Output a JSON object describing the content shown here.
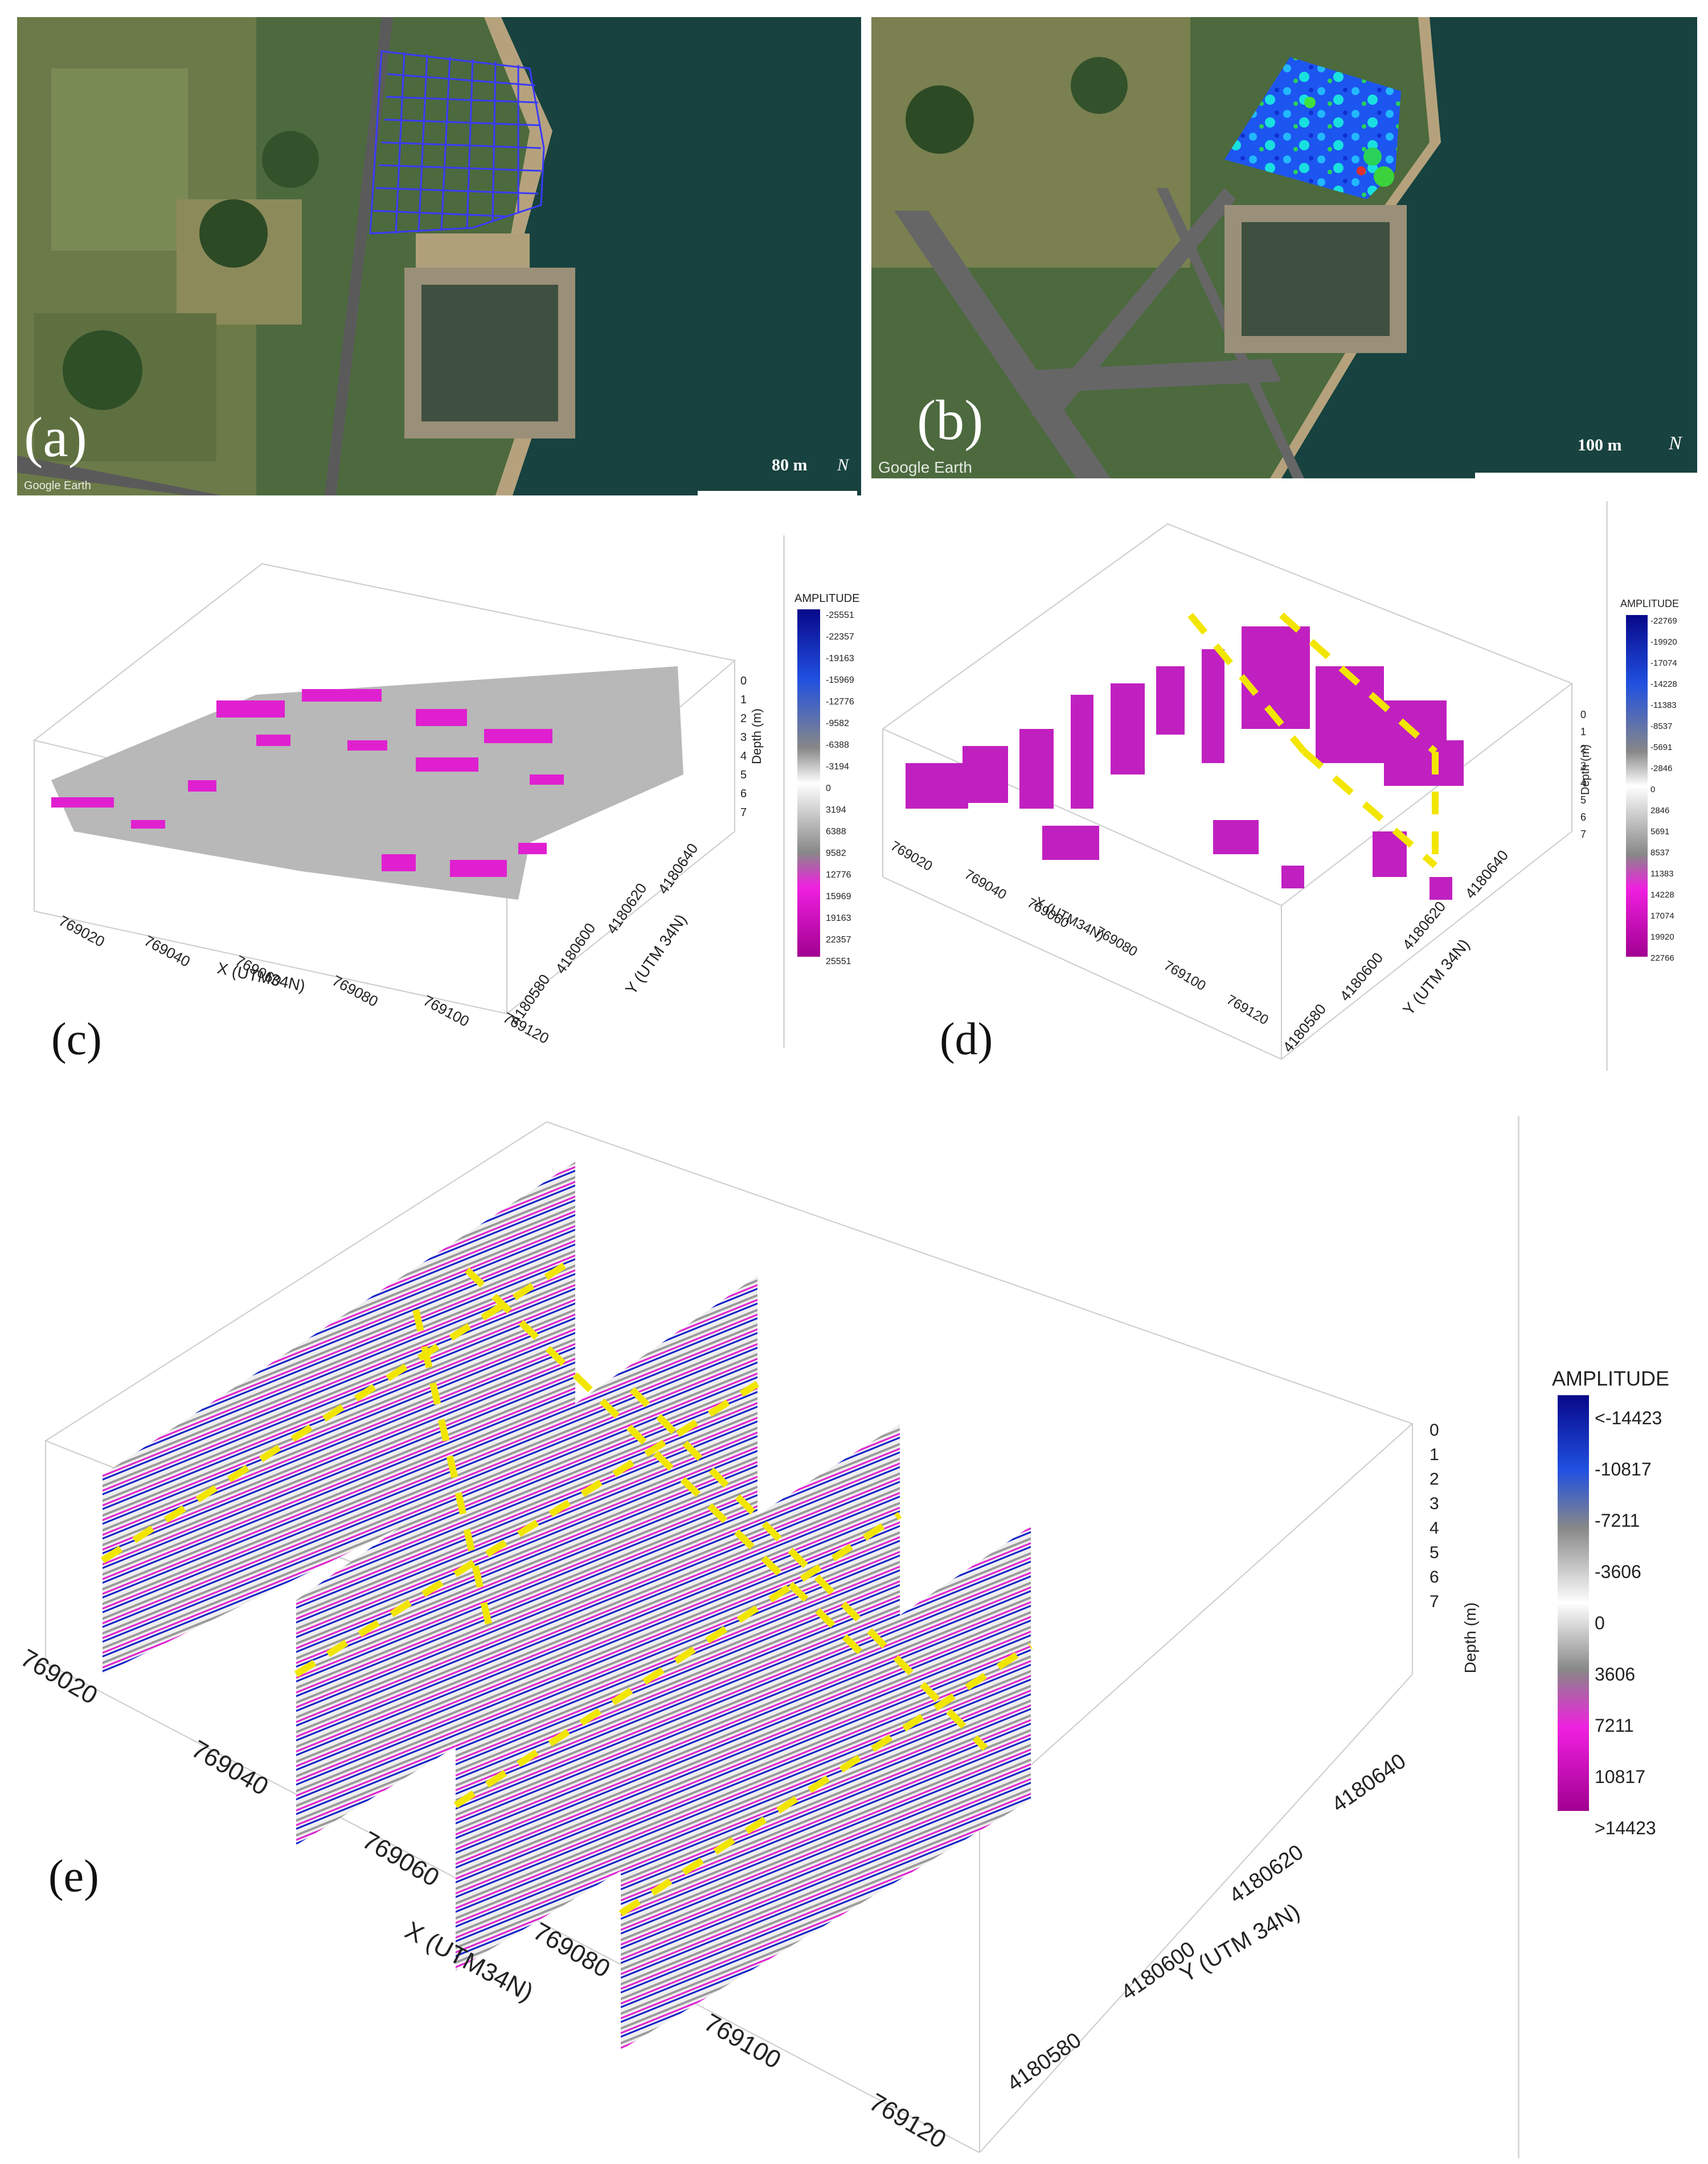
{
  "panels": {
    "a": {
      "letter": "(a)",
      "scale_label": "80 m",
      "north": "N",
      "credit": "Google Earth"
    },
    "b": {
      "letter": "(b)",
      "scale_label": "100 m",
      "north": "N",
      "credit": "Google Earth"
    },
    "c": {
      "letter": "(c)",
      "xlabel": "X (UTM34N)",
      "ylabel": "Y (UTM 34N)",
      "zlabel": "Depth (m)",
      "xticks": [
        "769020",
        "769040",
        "769060",
        "769080",
        "769100",
        "769120"
      ],
      "yticks": [
        "4180580",
        "4180600",
        "4180620",
        "4180640"
      ],
      "zticks": [
        "0",
        "1",
        "2",
        "3",
        "4",
        "5",
        "6",
        "7"
      ],
      "colorbar_title": "AMPLITUDE",
      "colorbar_ticks": [
        "-25551",
        "-22357",
        "-19163",
        "-15969",
        "-12776",
        "-9582",
        "-6388",
        "-3194",
        "0",
        "3194",
        "6388",
        "9582",
        "12776",
        "15969",
        "19163",
        "22357",
        "25551"
      ]
    },
    "d": {
      "letter": "(d)",
      "xlabel": "X (UTM34N)",
      "ylabel": "Y (UTM 34N)",
      "zlabel": "Depth (m)",
      "xticks": [
        "769020",
        "769040",
        "769060",
        "769080",
        "769100",
        "769120"
      ],
      "yticks": [
        "4180580",
        "4180600",
        "4180620",
        "4180640"
      ],
      "zticks": [
        "0",
        "1",
        "2",
        "3",
        "4",
        "5",
        "6",
        "7"
      ],
      "colorbar_title": "AMPLITUDE",
      "colorbar_ticks": [
        "-22769",
        "-19920",
        "-17074",
        "-14228",
        "-11383",
        "-8537",
        "-5691",
        "-2846",
        "0",
        "2846",
        "5691",
        "8537",
        "11383",
        "14228",
        "17074",
        "19920",
        "22766"
      ]
    },
    "e": {
      "letter": "(e)",
      "xlabel": "X (UTM34N)",
      "ylabel": "Y (UTM 34N)",
      "zlabel": "Depth (m)",
      "xticks": [
        "769020",
        "769040",
        "769060",
        "769080",
        "769100",
        "769120"
      ],
      "yticks": [
        "4180580",
        "4180600",
        "4180620",
        "4180640"
      ],
      "zticks": [
        "0",
        "1",
        "2",
        "3",
        "4",
        "5",
        "6",
        "7"
      ],
      "colorbar_title": "AMPLITUDE",
      "colorbar_ticks": [
        "<-14423",
        "-10817",
        "-7211",
        "-3606",
        "0",
        "3606",
        "7211",
        "10817",
        ">14423"
      ]
    }
  },
  "colors": {
    "negative": "#1020c8",
    "positive": "#e020d0",
    "highlight": "#f2e600",
    "grid_path": "#3a3aff"
  }
}
